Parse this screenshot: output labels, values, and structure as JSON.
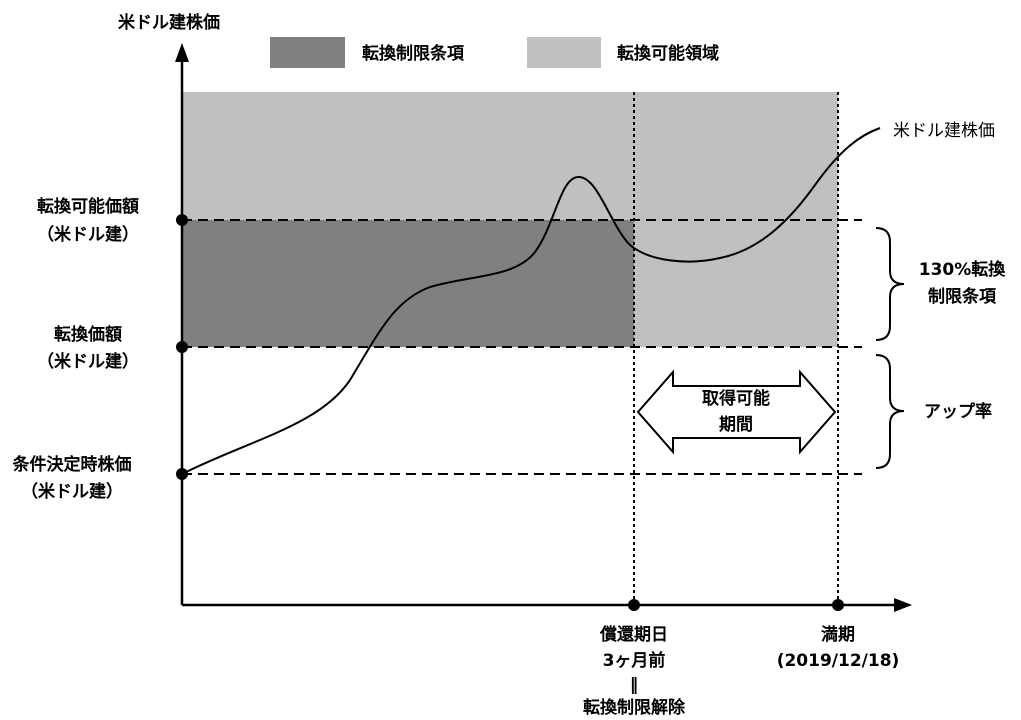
{
  "axes": {
    "y_label": "米ドル建株価"
  },
  "legend": [
    {
      "label": "転換制限条項",
      "color": "#808080"
    },
    {
      "label": "転換可能領域",
      "color": "#c0c0c0"
    }
  ],
  "curve_label": "米ドル建株価",
  "levels": {
    "conversion_possible": [
      "転換可能価額",
      "（米ドル建）"
    ],
    "conversion_price": [
      "転換価額",
      "（米ドル建）"
    ],
    "initial_price": [
      "条件決定時株価",
      "（米ドル建）"
    ]
  },
  "braces": {
    "upper": [
      "130%転換",
      "制限条項"
    ],
    "lower": "アップ率"
  },
  "period_arrow": [
    "取得可能",
    "期間"
  ],
  "x_markers": {
    "release": [
      "償還期日",
      "3ヶ月前",
      "‖",
      "転換制限解除"
    ],
    "maturity": [
      "満期",
      "(2019/12/18)"
    ]
  },
  "colors": {
    "restricted_region": "#808080",
    "convertible_region": "#c0c0c0",
    "line": "#000000"
  }
}
